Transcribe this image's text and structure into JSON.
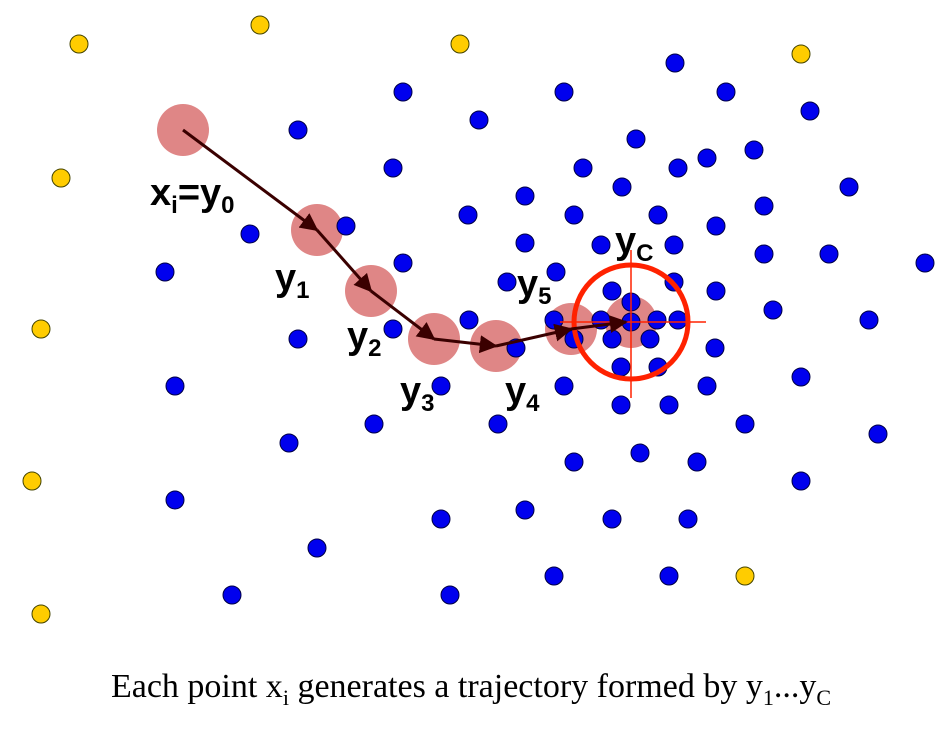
{
  "diagram": {
    "labels": {
      "x0": {
        "base": "x",
        "sub": "i",
        "eq": "=",
        "base2": "y",
        "sub2": "0"
      },
      "y1": {
        "base": "y",
        "sub": "1"
      },
      "y2": {
        "base": "y",
        "sub": "2"
      },
      "y3": {
        "base": "y",
        "sub": "3"
      },
      "y4": {
        "base": "y",
        "sub": "4"
      },
      "y5": {
        "base": "y",
        "sub": "5"
      },
      "yc": {
        "base": "y",
        "sub": "C"
      }
    },
    "colors": {
      "dense_point": "#0000ee",
      "sparse_point": "#ffcc00",
      "trajectory_halo": "#dd8080",
      "mode_circle": "#ff2200",
      "arrow": "#3a0000"
    }
  },
  "caption": {
    "text_a": "Each point x",
    "sub_a": "i",
    "text_b": " generates a trajectory formed by y",
    "sub_b": "1",
    "text_c": "...y",
    "sub_c": "C"
  }
}
